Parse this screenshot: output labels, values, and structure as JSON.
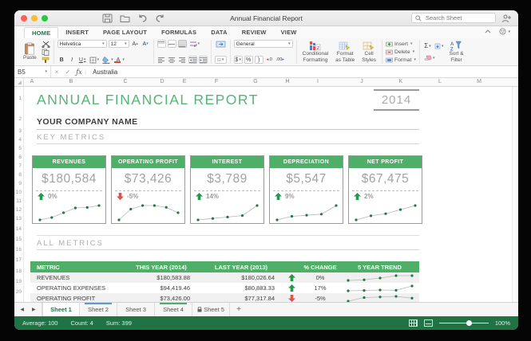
{
  "titlebar": {
    "title": "Annual Financial Report",
    "search_placeholder": "Search Sheet"
  },
  "ribbon": {
    "active_tab": "HOME",
    "tabs": [
      "HOME",
      "INSERT",
      "PAGE LAYOUT",
      "FORMULAS",
      "DATA",
      "REVIEW",
      "VIEW"
    ],
    "paste_label": "Paste",
    "font_name": "Helvetica",
    "font_size": "12",
    "grow_font": "A",
    "shrink_font": "A",
    "bold": "B",
    "italic": "I",
    "underline": "U",
    "number_format": "General",
    "currency": "$",
    "percent": "%",
    "comma": ")",
    "inc_decimal": ".0",
    "dec_decimal": ".00",
    "conditional_line1": "Conditional",
    "conditional_line2": "Formatting",
    "format_table_line1": "Format",
    "format_table_line2": "as Table",
    "cell_styles_line1": "Cell",
    "cell_styles_line2": "Styles",
    "insert_label": "Insert",
    "delete_label": "Delete",
    "format_label": "Format",
    "sigma": "Σ",
    "sort_filter_line1": "Sort &",
    "sort_filter_line2": "Filter"
  },
  "formula_bar": {
    "cell_ref": "B5",
    "cancel": "×",
    "enter": "✓",
    "fx": "ƒx",
    "value": "Australia"
  },
  "grid": {
    "columns": [
      "A",
      "B",
      "C",
      "D",
      "E",
      "F",
      "G",
      "H",
      "I",
      "J",
      "K",
      "L",
      "M"
    ],
    "rows": [
      "1",
      "2",
      "3",
      "4",
      "5",
      "6",
      "7",
      "8",
      "9",
      "10",
      "11",
      "12",
      "13",
      "14",
      "15",
      "16",
      "17",
      "18",
      "19",
      "20"
    ]
  },
  "report": {
    "title": "ANNUAL  FINANCIAL  REPORT",
    "year": "2014",
    "company": "YOUR COMPANY NAME",
    "section_key": "KEY  METRICS",
    "section_all": "ALL  METRICS"
  },
  "cards": [
    {
      "title": "REVENUES",
      "value": "$180,584",
      "direction": "up",
      "change": "0%",
      "spark": [
        3,
        4,
        6,
        8,
        8.2,
        9
      ]
    },
    {
      "title": "OPERATING PROFIT",
      "value": "$73,426",
      "direction": "down",
      "change": "-5%",
      "spark": [
        3,
        6,
        7,
        7,
        6.5,
        5
      ]
    },
    {
      "title": "INTEREST",
      "value": "$3,789",
      "direction": "up",
      "change": "14%",
      "spark": [
        3,
        3.4,
        3.8,
        4.2,
        7
      ]
    },
    {
      "title": "DEPRECIATION",
      "value": "$5,547",
      "direction": "up",
      "change": "9%",
      "spark": [
        3,
        4,
        4.3,
        4.6,
        7
      ]
    },
    {
      "title": "NET PROFIT",
      "value": "$67,475",
      "direction": "up",
      "change": "2%",
      "spark": [
        3,
        4,
        4.5,
        5.5,
        6.5
      ]
    }
  ],
  "table": {
    "headers": [
      "METRIC",
      "THIS YEAR (2014)",
      "LAST YEAR (2013)",
      "% CHANGE",
      "5 YEAR TREND"
    ],
    "rows": [
      {
        "metric": "REVENUES",
        "this_year": "$180,583.88",
        "last_year": "$180,026.64",
        "direction": "up",
        "change": "0%",
        "spark": [
          3,
          3.5,
          5,
          7,
          7
        ]
      },
      {
        "metric": "OPERATING EXPENSES",
        "this_year": "$94,419.46",
        "last_year": "$80,883.33",
        "direction": "up",
        "change": "17%",
        "spark": [
          3,
          3.2,
          3.6,
          3.4,
          6.5
        ]
      },
      {
        "metric": "OPERATING PROFIT",
        "this_year": "$73,426.00",
        "last_year": "$77,317.84",
        "direction": "down",
        "change": "-5%",
        "spark": [
          2,
          5,
          5.5,
          6,
          4.5
        ]
      }
    ]
  },
  "sheet_tabs": {
    "items": [
      {
        "label": "Sheet 1",
        "active": true
      },
      {
        "label": "Sheet 2",
        "marker": "#5b9bd5"
      },
      {
        "label": "Sheet 3"
      },
      {
        "label": "Sheet 4",
        "marker": "#4fae68"
      },
      {
        "label": "Sheet 5",
        "locked": true
      }
    ],
    "add_label": "+"
  },
  "status_bar": {
    "summaries": [
      "Average: 100",
      "Count: 4",
      "Sum: 399"
    ],
    "zoom": "100%"
  },
  "colors": {
    "accent_green": "#4fae68",
    "excel_green": "#217346",
    "up_arrow": "#21994d",
    "down_arrow": "#d9534f"
  }
}
